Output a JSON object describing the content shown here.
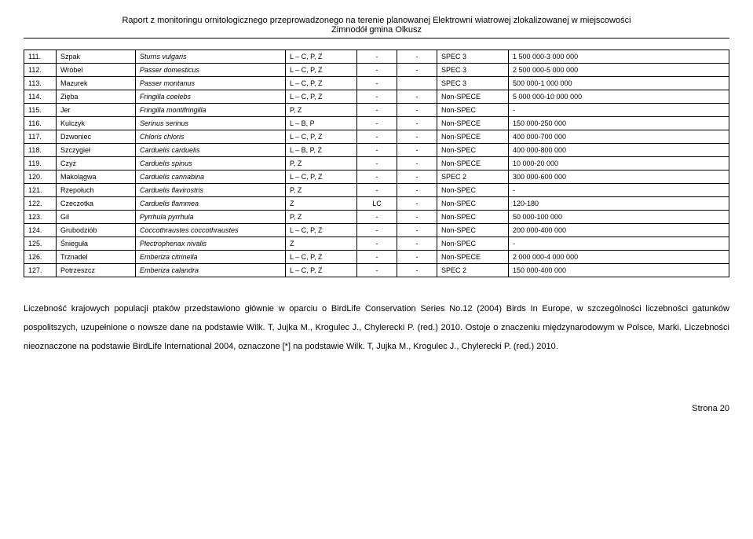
{
  "header": {
    "line1": "Raport z monitoringu ornitologicznego przeprowadzonego na terenie planowanej Elektrowni wiatrowej zlokalizowanej w miejscowości",
    "line2": "Zimnodół gmina Olkusz"
  },
  "rows": [
    {
      "num": "111.",
      "pl": "Szpak",
      "lat": "Sturns vulgaris",
      "code": "L – C, P, Z",
      "a": "-",
      "b": "-",
      "spec": "SPEC 3",
      "pop": "1 500 000-3 000 000"
    },
    {
      "num": "112.",
      "pl": "Wróbel",
      "lat": "Passer domesticus",
      "code": "L – C, P, Z",
      "a": "-",
      "b": "-",
      "spec": "SPEC 3",
      "pop": "2 500 000-5 000 000"
    },
    {
      "num": "113.",
      "pl": "Mazurek",
      "lat": "Passer montanus",
      "code": "L – C, P, Z",
      "a": "-",
      "b": "",
      "spec": "SPEC 3",
      "pop": "500 000-1 000 000"
    },
    {
      "num": "114.",
      "pl": "Zięba",
      "lat": "Fringilla coelebs",
      "code": "L – C, P, Z",
      "a": "-",
      "b": "-",
      "spec": "Non-SPECE",
      "pop": "5 000 000-10 000 000"
    },
    {
      "num": "115.",
      "pl": "Jer",
      "lat": "Fringilla montifringilla",
      "code": "P, Z",
      "a": "-",
      "b": "-",
      "spec": "Non-SPEC",
      "pop": "-"
    },
    {
      "num": "116.",
      "pl": "Kulczyk",
      "lat": "Serinus serinus",
      "code": "L – B, P",
      "a": "-",
      "b": "-",
      "spec": "Non-SPECE",
      "pop": "150 000-250 000"
    },
    {
      "num": "117.",
      "pl": "Dzwoniec",
      "lat": "Chloris chloris",
      "code": "L – C, P, Z",
      "a": "-",
      "b": "-",
      "spec": "Non-SPECE",
      "pop": "400 000-700 000"
    },
    {
      "num": "118.",
      "pl": "Szczygieł",
      "lat": "Carduelis carduelis",
      "code": "L – B, P, Z",
      "a": "-",
      "b": "-",
      "spec": "Non-SPEC",
      "pop": "400 000-800 000"
    },
    {
      "num": "119.",
      "pl": "Czyż",
      "lat": "Carduelis spinus",
      "code": "P, Z",
      "a": "-",
      "b": "-",
      "spec": "Non-SPECE",
      "pop": "10 000-20 000"
    },
    {
      "num": "120.",
      "pl": "Makolągwa",
      "lat": "Carduelis cannabina",
      "code": "L – C, P, Z",
      "a": "-",
      "b": "-",
      "spec": "SPEC 2",
      "pop": "300 000-600 000"
    },
    {
      "num": "121.",
      "pl": "Rzepołuch",
      "lat": "Carduelis flavirostris",
      "code": "P, Z",
      "a": "-",
      "b": "-",
      "spec": "Non-SPEC",
      "pop": "-"
    },
    {
      "num": "122.",
      "pl": "Czeczotka",
      "lat": "Carduelis flammea",
      "code": "Z",
      "a": "LC",
      "b": "-",
      "spec": "Non-SPEC",
      "pop": "120-180"
    },
    {
      "num": "123.",
      "pl": "Gil",
      "lat": "Pyrrhula pyrrhula",
      "code": "P, Z",
      "a": "-",
      "b": "-",
      "spec": "Non-SPEC",
      "pop": "50 000-100 000"
    },
    {
      "num": "124.",
      "pl": "Grubodziób",
      "lat": "Coccothraustes coccothraustes",
      "code": "L – C, P, Z",
      "a": "-",
      "b": "-",
      "spec": "Non-SPEC",
      "pop": "200 000-400 000"
    },
    {
      "num": "125.",
      "pl": "Śnieguła",
      "lat": "Plectrophenax nivalis",
      "code": "Z",
      "a": "-",
      "b": "-",
      "spec": "Non-SPEC",
      "pop": "-"
    },
    {
      "num": "126.",
      "pl": "Trznadel",
      "lat": "Emberiza citrinella",
      "code": "L – C, P, Z",
      "a": "-",
      "b": "-",
      "spec": "Non-SPECE",
      "pop": "2 000 000-4 000 000"
    },
    {
      "num": "127.",
      "pl": "Potrzeszcz",
      "lat": "Emberiza calandra",
      "code": "L – C, P, Z",
      "a": "-",
      "b": "-",
      "spec": "SPEC 2",
      "pop": "150 000-400 000"
    }
  ],
  "body": {
    "text": "Liczebność krajowych populacji ptaków przedstawiono głównie w oparciu o BirdLife Conservation Series No.12 (2004) Birds In Europe, w szczególności liczebności  gatunków pospolitszych, uzupełnione o nowsze dane na podstawie Wilk. T, Jujka M., Krogulec J., Chylerecki P. (red.) 2010. Ostoje o znaczeniu międzynarodowym w Polsce, Marki. Liczebności nieoznaczone na podstawie BirdLife International 2004, oznaczone [*] na podstawie Wilk. T, Jujka M., Krogulec J., Chylerecki P. (red.) 2010."
  },
  "footer": {
    "page": "Strona 20"
  }
}
